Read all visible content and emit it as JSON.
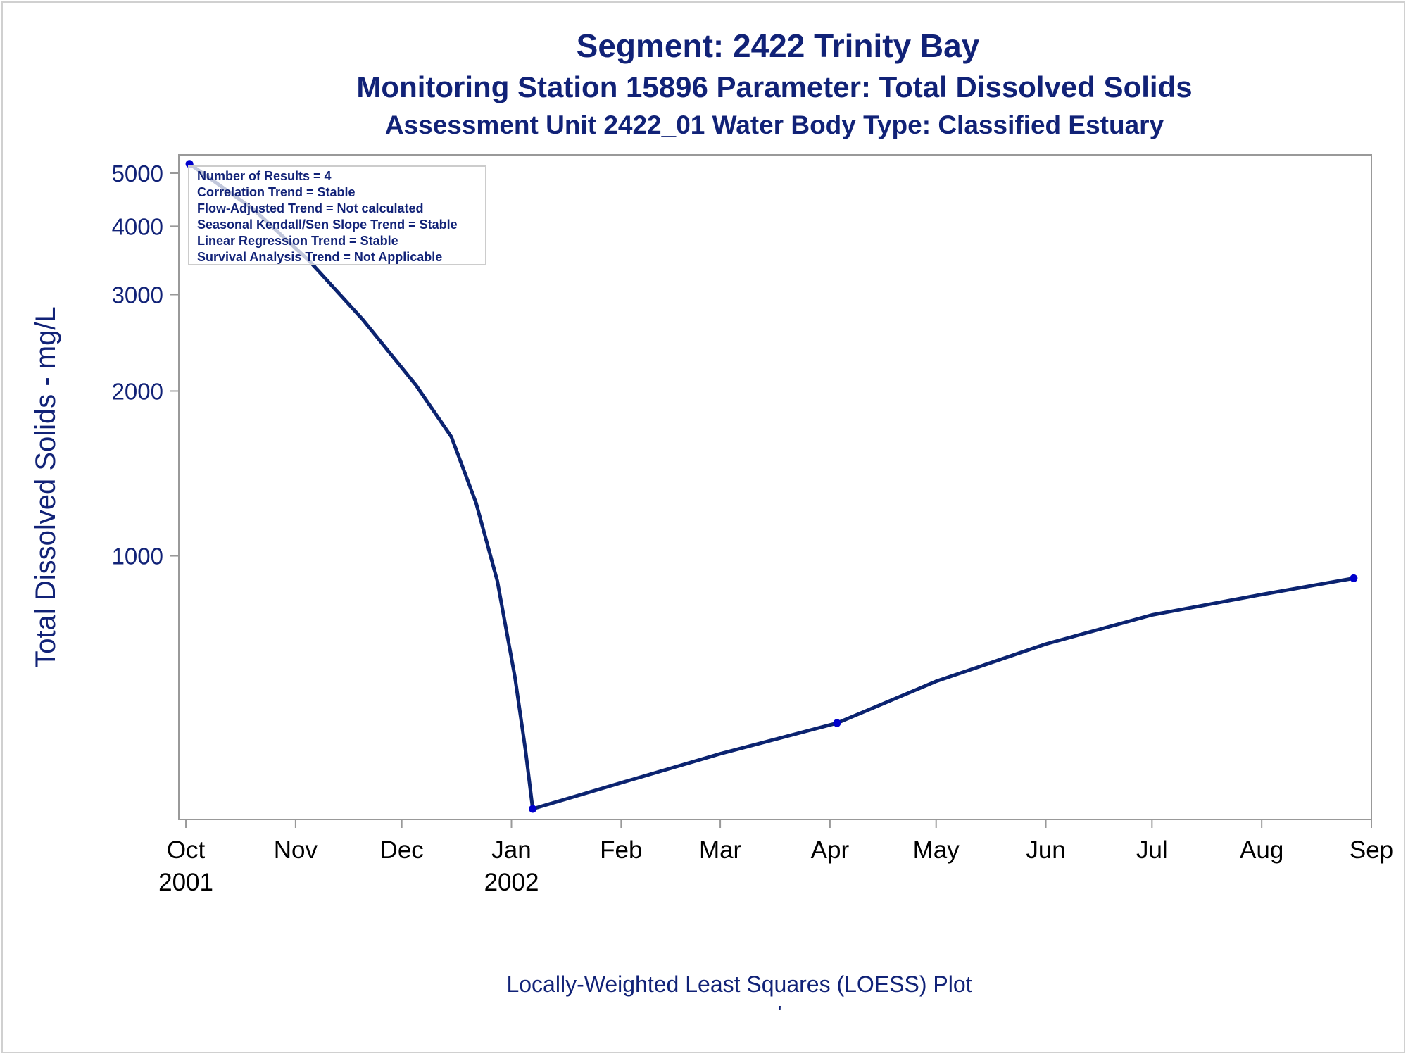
{
  "titles": {
    "line1": "Segment: 2422  Trinity Bay",
    "line2": "Monitoring Station 15896 Parameter: Total Dissolved Solids",
    "line3": "Assessment Unit 2422_01   Water Body Type: Classified Estuary"
  },
  "footnote": "Locally-Weighted Least Squares (LOESS) Plot",
  "footnote_mark": "'",
  "stats": [
    "Number of Results = 4",
    "Correlation Trend = Stable",
    "Flow-Adjusted Trend = Not calculated",
    "Seasonal Kendall/Sen Slope Trend = Stable",
    "Linear Regression Trend = Stable",
    "Survival Analysis Trend = Not Applicable"
  ],
  "colors": {
    "series": "#0b2370",
    "marker": "#0000cc",
    "text": "#112277"
  },
  "chart_data": {
    "type": "line",
    "title": "Segment: 2422  Trinity Bay",
    "ylabel": "Total Dissolved Solids - mg/L",
    "xlabel": "",
    "y_scale": "log",
    "ylim": [
      330,
      5400
    ],
    "xlim": [
      "2001-09-29",
      "2002-09-01"
    ],
    "y_ticks": [
      1000,
      2000,
      3000,
      4000,
      5000
    ],
    "x_ticks": [
      {
        "date": "2001-10-01",
        "label": "Oct",
        "sub": "2001"
      },
      {
        "date": "2001-11-01",
        "label": "Nov",
        "sub": ""
      },
      {
        "date": "2001-12-01",
        "label": "Dec",
        "sub": ""
      },
      {
        "date": "2002-01-01",
        "label": "Jan",
        "sub": "2002"
      },
      {
        "date": "2002-02-01",
        "label": "Feb",
        "sub": ""
      },
      {
        "date": "2002-03-01",
        "label": "Mar",
        "sub": ""
      },
      {
        "date": "2002-04-01",
        "label": "Apr",
        "sub": ""
      },
      {
        "date": "2002-05-01",
        "label": "May",
        "sub": ""
      },
      {
        "date": "2002-06-01",
        "label": "Jun",
        "sub": ""
      },
      {
        "date": "2002-07-01",
        "label": "Jul",
        "sub": ""
      },
      {
        "date": "2002-08-01",
        "label": "Aug",
        "sub": ""
      },
      {
        "date": "2002-09-01",
        "label": "Sep",
        "sub": ""
      }
    ],
    "points": [
      {
        "x": "2001-10-02",
        "y": 5200
      },
      {
        "x": "2002-01-07",
        "y": 345
      },
      {
        "x": "2002-04-03",
        "y": 495
      },
      {
        "x": "2002-08-27",
        "y": 910
      }
    ],
    "loess_curve": [
      {
        "x": "2001-10-02",
        "y": 5200
      },
      {
        "x": "2001-10-20",
        "y": 4300
      },
      {
        "x": "2001-11-05",
        "y": 3450
      },
      {
        "x": "2001-11-20",
        "y": 2700
      },
      {
        "x": "2001-12-05",
        "y": 2050
      },
      {
        "x": "2001-12-15",
        "y": 1650
      },
      {
        "x": "2001-12-22",
        "y": 1250
      },
      {
        "x": "2001-12-28",
        "y": 900
      },
      {
        "x": "2002-01-02",
        "y": 600
      },
      {
        "x": "2002-01-05",
        "y": 440
      },
      {
        "x": "2002-01-07",
        "y": 345
      },
      {
        "x": "2002-02-01",
        "y": 385
      },
      {
        "x": "2002-03-01",
        "y": 435
      },
      {
        "x": "2002-04-03",
        "y": 495
      },
      {
        "x": "2002-05-01",
        "y": 590
      },
      {
        "x": "2002-06-01",
        "y": 690
      },
      {
        "x": "2002-07-01",
        "y": 780
      },
      {
        "x": "2002-08-01",
        "y": 850
      },
      {
        "x": "2002-08-27",
        "y": 910
      }
    ],
    "grid": false,
    "legend": "none"
  }
}
